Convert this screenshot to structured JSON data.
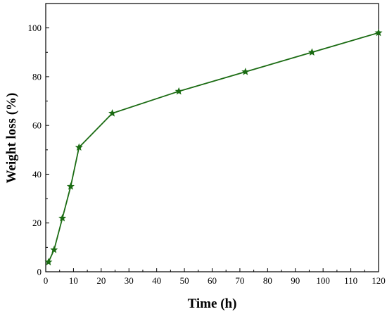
{
  "chart_data": {
    "type": "line",
    "title": "",
    "xlabel": "Time (h)",
    "ylabel": "Weight loss (%)",
    "xlim": [
      0,
      120
    ],
    "ylim": [
      0,
      110
    ],
    "xticks": [
      0,
      10,
      20,
      30,
      40,
      50,
      60,
      70,
      80,
      90,
      100,
      110,
      120
    ],
    "yticks": [
      0,
      20,
      40,
      60,
      80,
      100
    ],
    "grid": false,
    "legend": "none",
    "series": [
      {
        "marker": "star",
        "color": "#1a6b12",
        "x": [
          1,
          3,
          6,
          9,
          12,
          24,
          48,
          72,
          96,
          120
        ],
        "y": [
          4,
          9,
          22,
          35,
          51,
          65,
          74,
          82,
          90,
          98
        ]
      }
    ]
  }
}
